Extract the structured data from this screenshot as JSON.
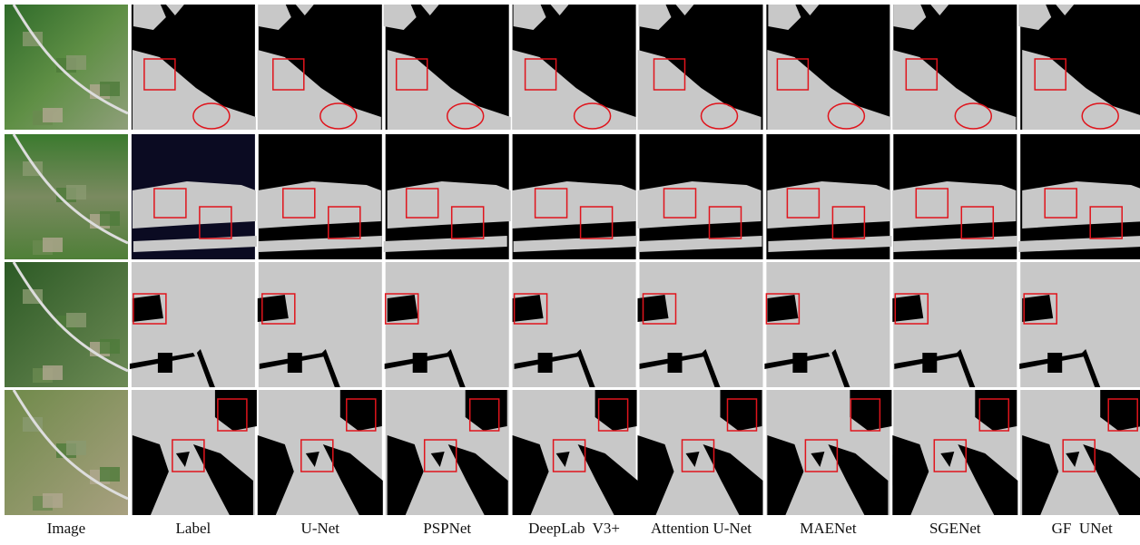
{
  "columns": [
    "Image",
    "Label",
    "U-Net",
    "PSPNet",
    "DeepLab  V3+",
    "Attention U-Net",
    "MAENet",
    "SGENet",
    "GF  UNet"
  ]
}
